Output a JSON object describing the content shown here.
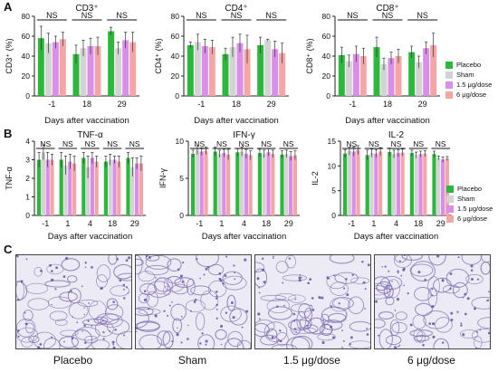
{
  "panels": {
    "a": "A",
    "b": "B",
    "c": "C"
  },
  "groups": [
    {
      "name": "Placebo",
      "color": "#2db83d"
    },
    {
      "name": "Sham",
      "color": "#d3d3d3"
    },
    {
      "name": "1.5 μg/dose",
      "color": "#d98ee8"
    },
    {
      "name": "6 μg/dose",
      "color": "#f4a6a6"
    }
  ],
  "legend_a": [
    "Placebo",
    "Sham",
    "1.5 μg/dose",
    "6 μg/dose"
  ],
  "legend_b": [
    "Placebo",
    "Sham",
    "1.5 μg/dose",
    "6 μg/dose"
  ],
  "chart_data": [
    {
      "type": "bar",
      "title": "CD3⁺",
      "ylabel": "CD3⁺ (%)",
      "xlabel": "Days after vaccination",
      "categories": [
        "-1",
        "18",
        "29"
      ],
      "ylim": [
        0,
        80
      ],
      "yticks": [
        0,
        20,
        40,
        60,
        80
      ],
      "series": [
        {
          "name": "Placebo",
          "values": [
            58,
            42,
            65
          ],
          "errors": [
            12,
            9,
            4
          ]
        },
        {
          "name": "Sham",
          "values": [
            53,
            48,
            48
          ],
          "errors": [
            10,
            8,
            6
          ]
        },
        {
          "name": "1.5 μg/dose",
          "values": [
            54,
            50,
            56
          ],
          "errors": [
            6,
            8,
            8
          ]
        },
        {
          "name": "6 μg/dose",
          "values": [
            57,
            50,
            54
          ],
          "errors": [
            7,
            9,
            10
          ]
        }
      ],
      "annotations": [
        "NS",
        "NS",
        "NS"
      ]
    },
    {
      "type": "bar",
      "title": "CD4⁺",
      "ylabel": "CD4⁺ (%)",
      "xlabel": "Days after vaccination",
      "categories": [
        "-1",
        "18",
        "29"
      ],
      "ylim": [
        0,
        80
      ],
      "yticks": [
        0,
        20,
        40,
        60,
        80
      ],
      "series": [
        {
          "name": "Placebo",
          "values": [
            51,
            42,
            51
          ],
          "errors": [
            3,
            6,
            8
          ]
        },
        {
          "name": "Sham",
          "values": [
            54,
            49,
            56
          ],
          "errors": [
            8,
            10,
            1
          ]
        },
        {
          "name": "1.5 μg/dose",
          "values": [
            50,
            53,
            47
          ],
          "errors": [
            7,
            9,
            8
          ]
        },
        {
          "name": "6 μg/dose",
          "values": [
            49,
            47,
            43
          ],
          "errors": [
            7,
            14,
            10
          ]
        }
      ],
      "annotations": [
        "NS",
        "NS",
        "NS"
      ]
    },
    {
      "type": "bar",
      "title": "CD8⁺",
      "ylabel": "CD8⁺ (%)",
      "xlabel": "Days after vaccination",
      "categories": [
        "-1",
        "18",
        "29"
      ],
      "ylim": [
        0,
        80
      ],
      "yticks": [
        0,
        20,
        40,
        60,
        80
      ],
      "series": [
        {
          "name": "Placebo",
          "values": [
            41,
            49,
            44
          ],
          "errors": [
            8,
            10,
            6
          ]
        },
        {
          "name": "Sham",
          "values": [
            35,
            32,
            34
          ],
          "errors": [
            6,
            6,
            6
          ]
        },
        {
          "name": "1.5 μg/dose",
          "values": [
            42,
            38,
            48
          ],
          "errors": [
            8,
            6,
            6
          ]
        },
        {
          "name": "6 μg/dose",
          "values": [
            40,
            40,
            51
          ],
          "errors": [
            8,
            7,
            12
          ]
        }
      ],
      "annotations": [
        "NS",
        "NS",
        "NS"
      ]
    },
    {
      "type": "bar",
      "title": "TNF-α",
      "ylabel": "TNF-α",
      "xlabel": "Days after vaccination",
      "categories": [
        "-1",
        "1",
        "4",
        "18",
        "29"
      ],
      "ylim": [
        0,
        4
      ],
      "yticks": [
        0,
        1,
        2,
        3,
        4
      ],
      "series": [
        {
          "name": "Placebo",
          "values": [
            3.0,
            3.0,
            3.1,
            2.9,
            3.1
          ],
          "errors": [
            0.4,
            0.4,
            0.3,
            0.3,
            0.3
          ]
        },
        {
          "name": "Sham",
          "values": [
            3.4,
            2.7,
            2.6,
            3.0,
            2.6
          ],
          "errors": [
            0.4,
            0.5,
            0.6,
            0.3,
            0.5
          ]
        },
        {
          "name": "1.5 μg/dose",
          "values": [
            3.0,
            2.9,
            3.1,
            3.0,
            2.8
          ],
          "errors": [
            0.4,
            0.4,
            0.3,
            0.2,
            0.3
          ]
        },
        {
          "name": "6 μg/dose",
          "values": [
            3.0,
            2.8,
            2.9,
            2.9,
            2.8
          ],
          "errors": [
            0.3,
            0.4,
            0.3,
            0.3,
            0.4
          ]
        }
      ],
      "annotations": [
        "NS",
        "NS",
        "NS",
        "NS",
        "NS"
      ]
    },
    {
      "type": "bar",
      "title": "IFN-γ",
      "ylabel": "IFN-γ",
      "xlabel": "Days after vaccination",
      "categories": [
        "-1",
        "1",
        "4",
        "18",
        "29"
      ],
      "ylim": [
        0,
        10
      ],
      "yticks": [
        0,
        5,
        10
      ],
      "series": [
        {
          "name": "Placebo",
          "values": [
            8.3,
            8.6,
            8.5,
            8.4,
            8.2
          ],
          "errors": [
            0.5,
            0.6,
            0.5,
            0.5,
            0.5
          ]
        },
        {
          "name": "Sham",
          "values": [
            8.8,
            8.3,
            8.6,
            8.3,
            8.3
          ],
          "errors": [
            0.6,
            0.5,
            0.6,
            0.5,
            0.5
          ]
        },
        {
          "name": "1.5 μg/dose",
          "values": [
            8.6,
            8.4,
            8.3,
            8.5,
            8.0
          ],
          "errors": [
            0.5,
            0.5,
            0.6,
            0.5,
            0.6
          ]
        },
        {
          "name": "6 μg/dose",
          "values": [
            8.7,
            8.2,
            8.1,
            8.3,
            8.1
          ],
          "errors": [
            0.5,
            0.7,
            0.6,
            0.5,
            0.6
          ]
        }
      ],
      "annotations": [
        "NS",
        "NS",
        "NS",
        "NS",
        "NS"
      ]
    },
    {
      "type": "bar",
      "title": "IL-2",
      "ylabel": "IL-2",
      "xlabel": "Days after vaccination",
      "categories": [
        "-1",
        "1",
        "4",
        "18",
        "29"
      ],
      "ylim": [
        0,
        15
      ],
      "yticks": [
        0,
        5,
        10,
        15
      ],
      "series": [
        {
          "name": "Placebo",
          "values": [
            12.5,
            12.2,
            12.8,
            12.6,
            12.4
          ],
          "errors": [
            0.8,
            1.0,
            0.8,
            0.6,
            0.6
          ]
        },
        {
          "name": "Sham",
          "values": [
            13.0,
            12.6,
            12.4,
            12.2,
            11.6
          ],
          "errors": [
            0.8,
            0.8,
            0.8,
            0.6,
            0.4
          ]
        },
        {
          "name": "1.5 μg/dose",
          "values": [
            12.9,
            12.5,
            12.6,
            12.4,
            11.3
          ],
          "errors": [
            0.9,
            0.8,
            0.7,
            0.6,
            0.5
          ]
        },
        {
          "name": "6 μg/dose",
          "values": [
            13.2,
            12.9,
            12.7,
            12.5,
            11.5
          ],
          "errors": [
            0.9,
            0.8,
            0.7,
            0.6,
            0.4
          ]
        }
      ],
      "annotations": [
        "NS",
        "NS",
        "NS",
        "NS",
        "NS"
      ]
    }
  ],
  "micrographs": [
    "Placebo",
    "Sham",
    "1.5 μg/dose",
    "6 μg/dose"
  ]
}
